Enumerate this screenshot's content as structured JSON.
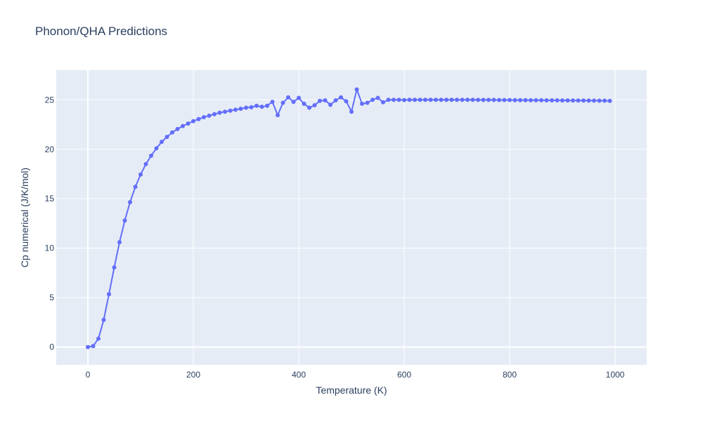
{
  "chart_data": {
    "type": "line",
    "title": "Phonon/QHA Predictions",
    "xlabel": "Temperature (K)",
    "ylabel": "Cp numerical (J/K/mol)",
    "xlim": [
      -60,
      1060
    ],
    "ylim": [
      -1.8,
      28
    ],
    "x_ticks": [
      0,
      200,
      400,
      600,
      800,
      1000
    ],
    "y_ticks": [
      0,
      5,
      10,
      15,
      20,
      25
    ],
    "x_tick_labels": [
      "0",
      "200",
      "400",
      "600",
      "800",
      "1000"
    ],
    "y_tick_labels": [
      "0",
      "5",
      "10",
      "15",
      "20",
      "25"
    ],
    "grid": true,
    "plot_bg": "#e5ecf6",
    "grid_color": "#ffffff",
    "series": [
      {
        "color": "#636efa",
        "mode": "lines+markers",
        "x": [
          0,
          10,
          20,
          30,
          40,
          50,
          60,
          70,
          80,
          90,
          100,
          110,
          120,
          130,
          140,
          150,
          160,
          170,
          180,
          190,
          200,
          210,
          220,
          230,
          240,
          250,
          260,
          270,
          280,
          290,
          300,
          310,
          320,
          330,
          340,
          350,
          360,
          370,
          380,
          390,
          400,
          410,
          420,
          430,
          440,
          450,
          460,
          470,
          480,
          490,
          500,
          510,
          520,
          530,
          540,
          550,
          560,
          570,
          580,
          590,
          600,
          610,
          620,
          630,
          640,
          650,
          660,
          670,
          680,
          690,
          700,
          710,
          720,
          730,
          740,
          750,
          760,
          770,
          780,
          790,
          800,
          810,
          820,
          830,
          840,
          850,
          860,
          870,
          880,
          890,
          900,
          910,
          920,
          930,
          940,
          950,
          960,
          970,
          980,
          990
        ],
        "y": [
          0.0,
          0.1,
          0.85,
          2.75,
          5.35,
          8.05,
          10.6,
          12.8,
          14.65,
          16.2,
          17.45,
          18.5,
          19.35,
          20.1,
          20.75,
          21.25,
          21.7,
          22.05,
          22.35,
          22.6,
          22.85,
          23.05,
          23.25,
          23.4,
          23.55,
          23.7,
          23.8,
          23.9,
          24.0,
          24.1,
          24.2,
          24.25,
          24.4,
          24.3,
          24.4,
          24.8,
          23.45,
          24.7,
          25.25,
          24.8,
          25.2,
          24.6,
          24.2,
          24.45,
          24.9,
          24.95,
          24.5,
          24.95,
          25.25,
          24.85,
          23.8,
          26.05,
          24.6,
          24.7,
          25.0,
          25.2,
          24.75,
          25.0,
          25.0,
          25.0,
          24.98,
          25.0,
          25.0,
          25.0,
          25.0,
          25.0,
          25.0,
          25.0,
          25.0,
          25.0,
          25.0,
          25.0,
          25.0,
          25.0,
          24.99,
          24.99,
          24.99,
          24.99,
          24.98,
          24.98,
          24.98,
          24.97,
          24.97,
          24.97,
          24.96,
          24.96,
          24.96,
          24.95,
          24.95,
          24.95,
          24.94,
          24.94,
          24.93,
          24.93,
          24.93,
          24.92,
          24.92,
          24.91,
          24.91,
          24.9
        ]
      }
    ]
  }
}
